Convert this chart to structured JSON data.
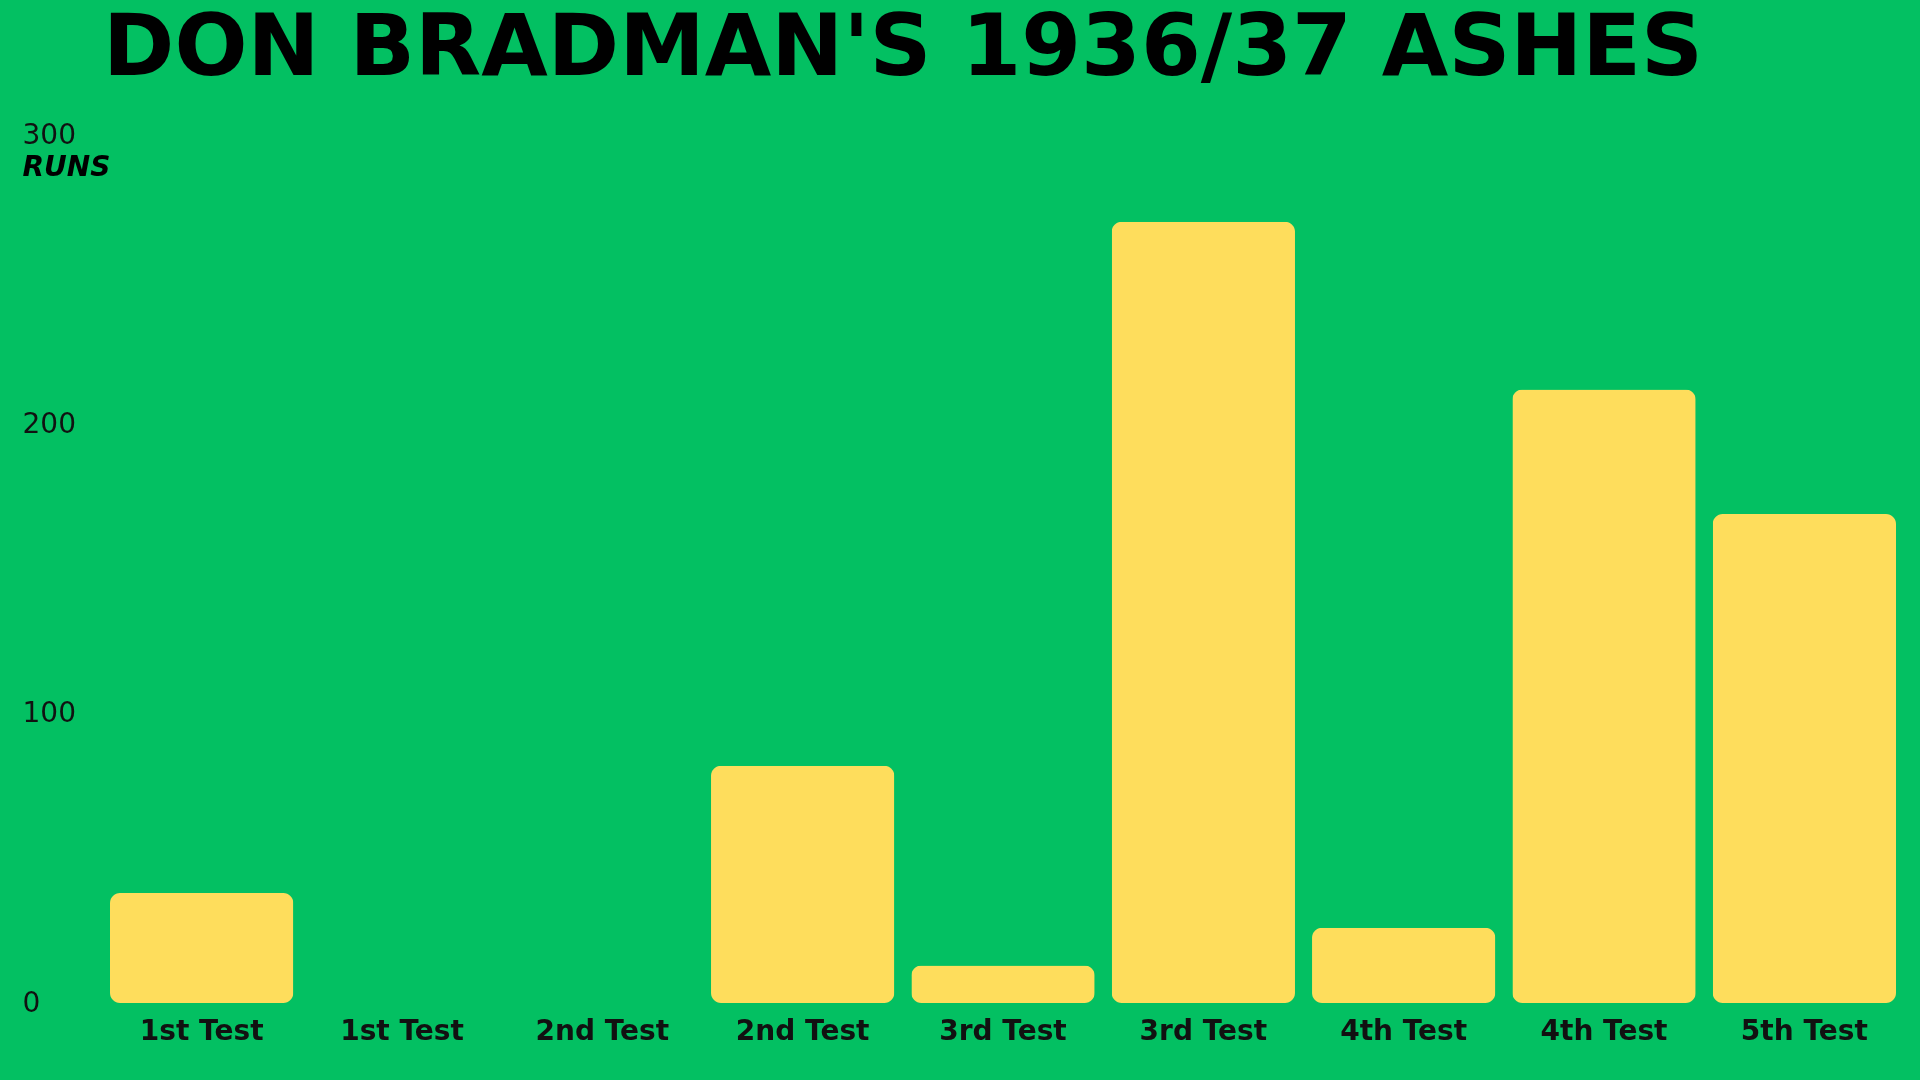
{
  "chart_data": {
    "type": "bar",
    "title": "DON BRADMAN'S 1936/37 ASHES",
    "ylabel": "RUNS",
    "categories": [
      "1st Test",
      "1st Test",
      "2nd Test",
      "2nd Test",
      "3rd Test",
      "3rd Test",
      "4th Test",
      "4th Test",
      "5th Test"
    ],
    "values": [
      38,
      0,
      0,
      82,
      13,
      270,
      26,
      212,
      169
    ],
    "color": "#fedd5c",
    "ylim": [
      0,
      300
    ],
    "yticks": [
      0,
      100,
      200,
      300
    ],
    "grid": false
  }
}
